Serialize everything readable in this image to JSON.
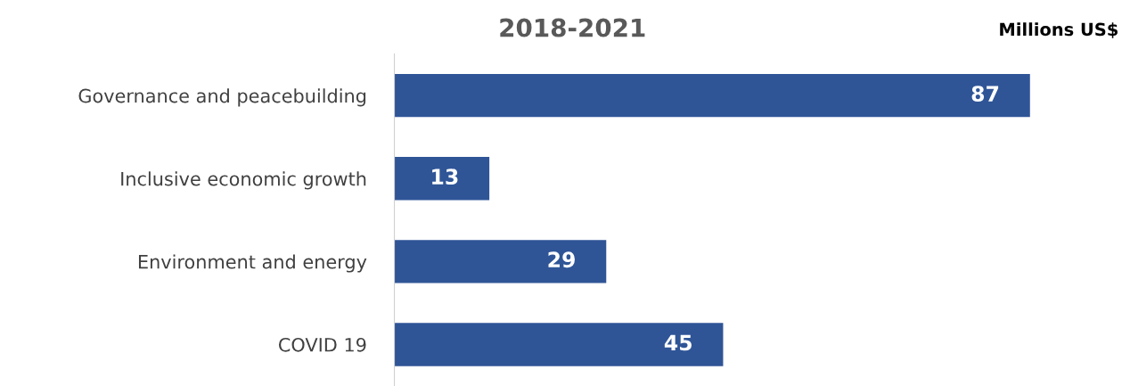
{
  "chart_data": {
    "type": "bar",
    "orientation": "horizontal",
    "title": "2018-2021",
    "annotations": [
      "Millions US$"
    ],
    "categories": [
      "Governance and peacebuilding",
      "Inclusive economic growth",
      "Environment and energy",
      "COVID 19"
    ],
    "values": [
      87,
      13,
      29,
      45
    ],
    "color": "#2f5597",
    "data_labels": true,
    "grid": false,
    "legend": false
  }
}
